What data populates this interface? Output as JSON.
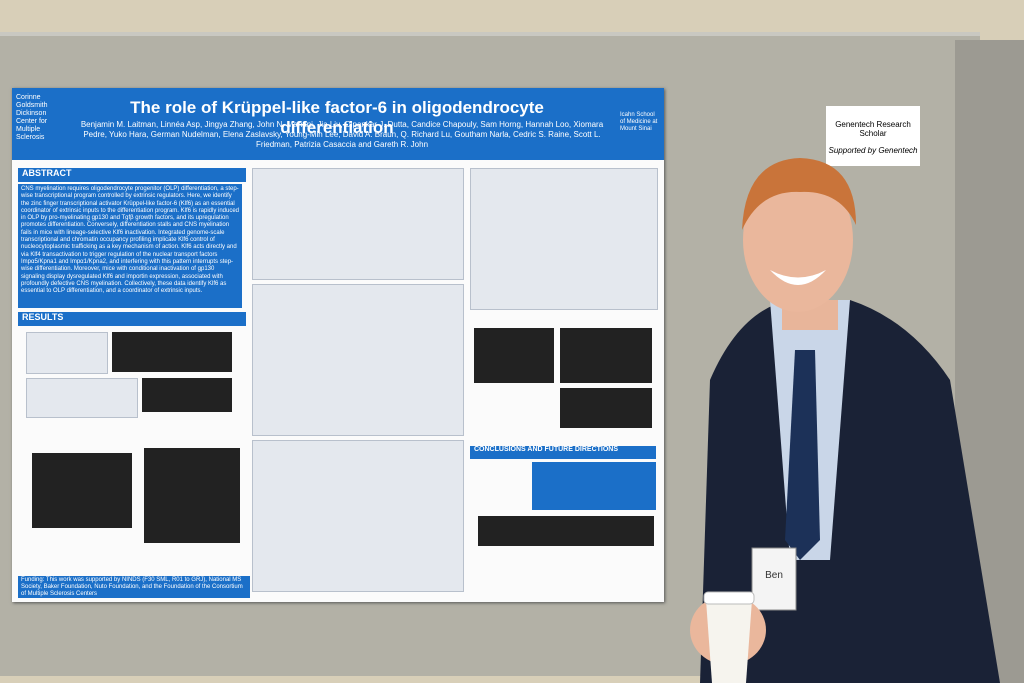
{
  "poster": {
    "title": "The role of Krüppel-like factor-6 in oligodendrocyte differentiation",
    "authors": "Benjamin M. Laitman, Linnéa Asp, Jingya Zhang, John N. Mariani, Jia Liu, Dipankar J. Dutta, Candice Chapouly, Sam Horng, Hannah Loo, Xiomara Pedre, Yuko Hara, German Nudelman, Elena Zaslavsky, Young-Min Lee, David A. Braun, Q. Richard Lu, Goutham Narla, Cedric S. Raine, Scott L. Friedman, Patrizia Casaccia and Gareth R. John",
    "left_logo": "Corinne Goldsmith Dickinson Center for Multiple Sclerosis",
    "right_logo": "Icahn School of Medicine at Mount Sinai",
    "abstract_heading": "ABSTRACT",
    "abstract": "CNS myelination requires oligodendrocyte progenitor (OLP) differentiation, a step-wise transcriptional program controlled by extrinsic regulators. Here, we identify the zinc finger transcriptional activator Krüppel-like factor-6 (Klf6) as an essential coordinator of extrinsic inputs to the differentiation program. Klf6 is rapidly induced in OLP by pro-myelinating gp130 and Tgfβ growth factors, and its upregulation promotes differentiation. Conversely, differentiation stalls and CNS myelination fails in mice with lineage-selective Klf6 inactivation. Integrated genome-scale transcriptional and chromatin occupancy profiling implicate Klf6 control of nucleocytoplasmic trafficking as a key mechanism of action. Klf6 acts directly and via Klf4 transactivation to trigger regulation of the nuclear transport factors Impα5/Kpna1 and Impα1/Kpna2, and interfering with this pattern interrupts step-wise differentiation. Moreover, mice with conditional inactivation of gp130 signaling display dysregulated Klf6 and importin expression, associated with profoundly defective CNS myelination. Collectively, these data identify Klf6 as essential to OLP differentiation, and a coordinator of extrinsic inputs.",
    "results_heading": "RESULTS",
    "conclusions_heading": "CONCLUSIONS AND FUTURE DIRECTIONS",
    "funding": "Funding: This work was supported by NINDS (F30 SML, R01 to GRJ), National MS Society, Baker Foundation, Nuto Foundation, and the Foundation of the Consortium of Multiple Sclerosis Centers"
  },
  "sign": {
    "line1": "Genentech Research Scholar",
    "line2": "Supported by Genentech"
  },
  "badge": {
    "name": "Ben"
  }
}
